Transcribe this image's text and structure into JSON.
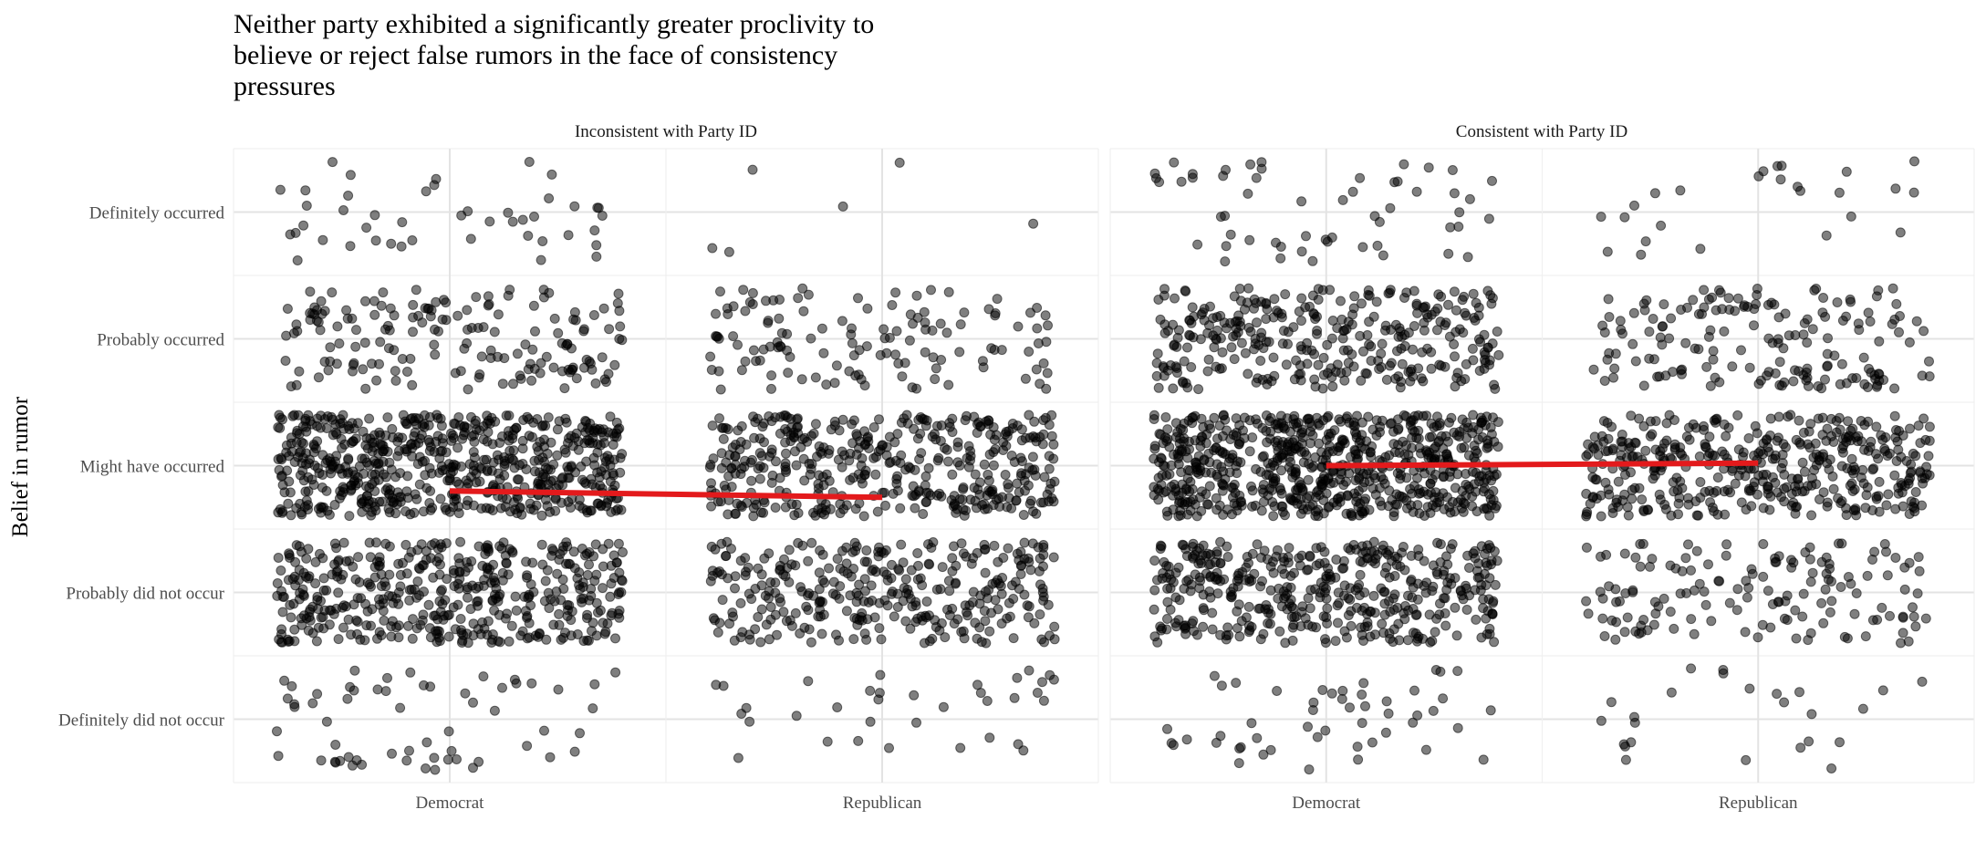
{
  "chart_data": {
    "type": "scatter",
    "title": "Neither party exhibited a significantly greater proclivity to believe or reject false rumors in the face of consistency pressures",
    "title_lines": [
      "Neither party exhibited a significantly greater proclivity to",
      "believe or reject false rumors in the face of consistency",
      "pressures"
    ],
    "xlabel": "",
    "ylabel": "Belief in rumor",
    "x_categories": [
      "Democrat",
      "Republican"
    ],
    "y_categories": [
      "Definitely did not occur",
      "Probably did not occur",
      "Might have occurred",
      "Probably occurred",
      "Definitely occurred"
    ],
    "ylim": [
      0.5,
      5.5
    ],
    "jitter": {
      "x": 0.4,
      "y": 0.4
    },
    "grid": true,
    "legend": "none",
    "point_color": "#000000",
    "trend_color": "#e31a1c",
    "panels": [
      {
        "label": "Inconsistent with Party ID",
        "counts": {
          "Democrat": [
            60,
            450,
            640,
            170,
            45
          ],
          "Republican": [
            35,
            330,
            430,
            130,
            6
          ]
        },
        "trend": {
          "Democrat": 2.8,
          "Republican": 2.75
        }
      },
      {
        "label": "Consistent with Party ID",
        "counts": {
          "Democrat": [
            50,
            440,
            720,
            330,
            55
          ],
          "Republican": [
            25,
            150,
            430,
            170,
            25
          ]
        },
        "trend": {
          "Democrat": 3.0,
          "Republican": 3.02
        }
      }
    ]
  }
}
